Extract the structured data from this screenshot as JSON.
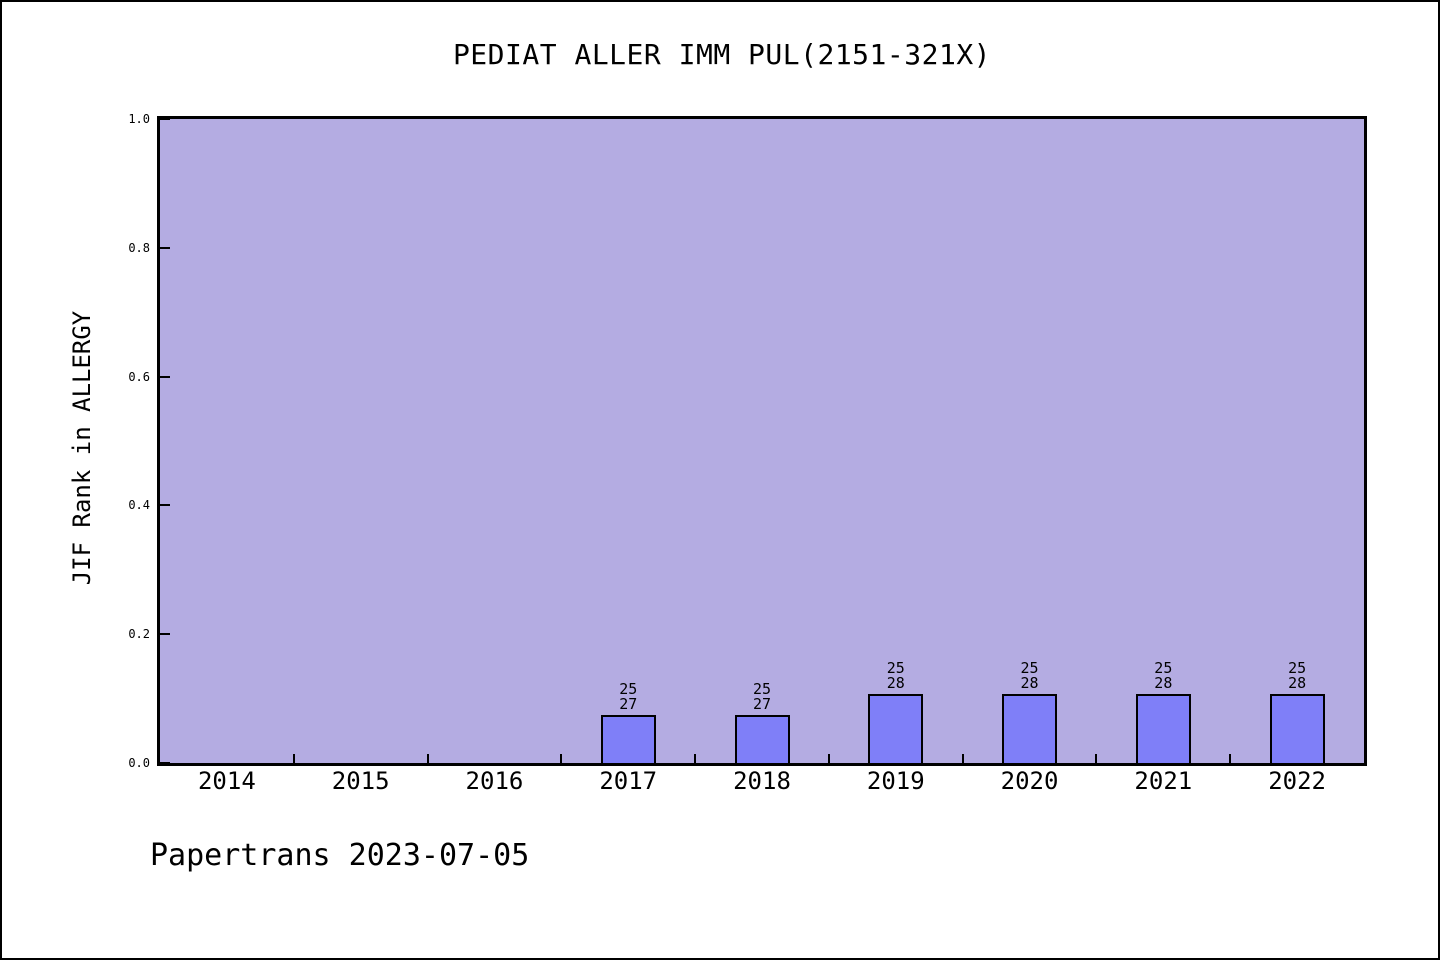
{
  "chart_data": {
    "type": "bar",
    "title": "PEDIAT ALLER IMM PUL(2151-321X)",
    "ylabel": "JIF Rank in ALLERGY",
    "xlabel": "",
    "footer": "Papertrans 2023-07-05",
    "categories": [
      "2014",
      "2015",
      "2016",
      "2017",
      "2018",
      "2019",
      "2020",
      "2021",
      "2022"
    ],
    "y_ticks": [
      {
        "label": "0.0",
        "value": 0.0
      },
      {
        "label": "0.2",
        "value": 0.2
      },
      {
        "label": "0.4",
        "value": 0.4
      },
      {
        "label": "0.6",
        "value": 0.6
      },
      {
        "label": "0.8",
        "value": 0.8
      },
      {
        "label": "1.0",
        "value": 1.0
      }
    ],
    "ylim": [
      0,
      1
    ],
    "grid": false,
    "legend": false,
    "bars": [
      {
        "category": "2017",
        "rank": 25,
        "total": 27,
        "label_lines": [
          "25",
          "27"
        ],
        "height_frac": 0.074
      },
      {
        "category": "2018",
        "rank": 25,
        "total": 27,
        "label_lines": [
          "25",
          "27"
        ],
        "height_frac": 0.074
      },
      {
        "category": "2019",
        "rank": 25,
        "total": 28,
        "label_lines": [
          "25",
          "28"
        ],
        "height_frac": 0.107
      },
      {
        "category": "2020",
        "rank": 25,
        "total": 28,
        "label_lines": [
          "25",
          "28"
        ],
        "height_frac": 0.107
      },
      {
        "category": "2021",
        "rank": 25,
        "total": 28,
        "label_lines": [
          "25",
          "28"
        ],
        "height_frac": 0.107
      },
      {
        "category": "2022",
        "rank": 25,
        "total": 28,
        "label_lines": [
          "25",
          "28"
        ],
        "height_frac": 0.107
      }
    ],
    "colors": {
      "bar_fill": "#7f7ff8",
      "bar_edge": "#000000",
      "plot_bg": "#b4ace2",
      "figure_bg": "#ffffff",
      "text": "#000000"
    }
  }
}
